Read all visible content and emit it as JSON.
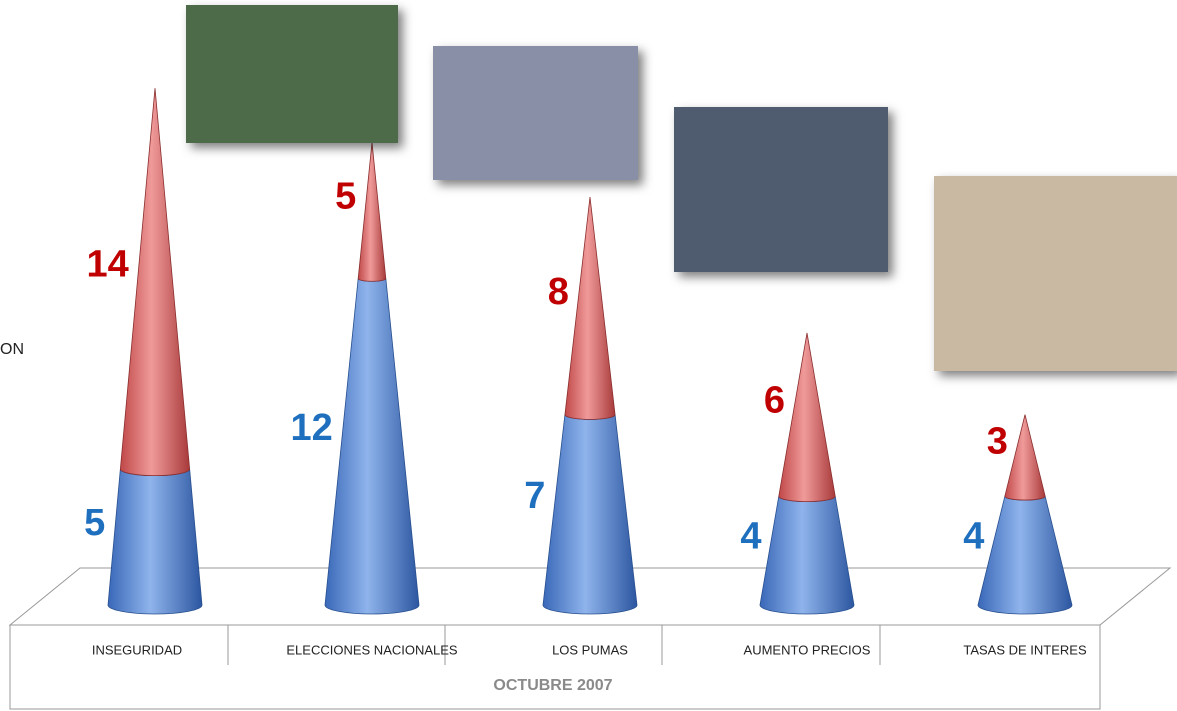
{
  "chart_data": {
    "type": "cone",
    "categories": [
      "INSEGURIDAD",
      "ELECCIONES NACIONALES",
      "LOS PUMAS",
      "AUMENTO PRECIOS",
      "TASAS DE INTERES"
    ],
    "x_label": "OCTUBRE 2007",
    "legend_fragment": "ON",
    "series": [
      {
        "color": "#1f6fbf",
        "values": [
          5,
          12,
          7,
          4,
          4
        ]
      },
      {
        "color": "#c00000",
        "values": [
          14,
          5,
          8,
          6,
          3
        ]
      }
    ]
  }
}
